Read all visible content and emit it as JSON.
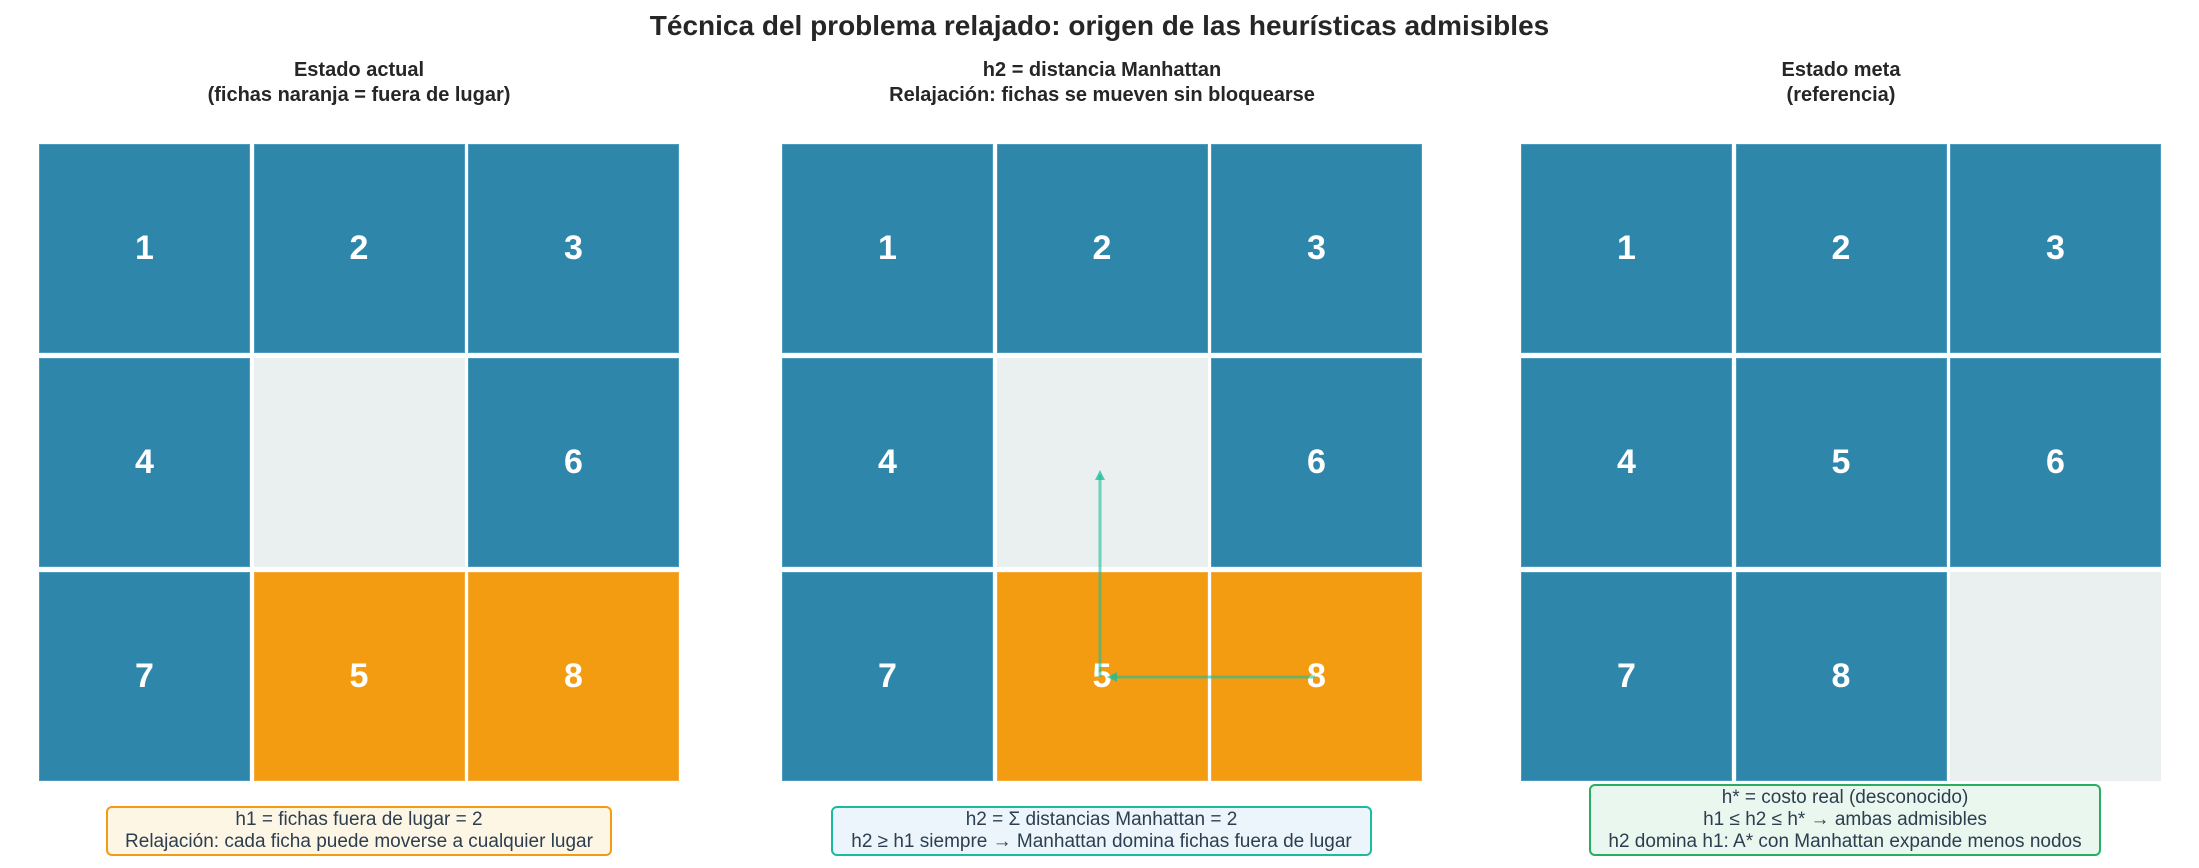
{
  "title": "Técnica del problema relajado: origen de las heurísticas admisibles",
  "colors": {
    "in_place": "#2e86ab",
    "out_of_place": "#f39c12",
    "blank": "#eaeff0",
    "arrow": "#1abc9c",
    "note_orange_border": "#f39c12",
    "note_teal_border": "#1abc9c",
    "note_green_border": "#27ae60"
  },
  "panels": [
    {
      "title_line1": "Estado actual",
      "title_line2": "(fichas naranja = fuera de lugar)",
      "tiles": [
        {
          "label": "1",
          "state": "ok"
        },
        {
          "label": "2",
          "state": "ok"
        },
        {
          "label": "3",
          "state": "ok"
        },
        {
          "label": "4",
          "state": "ok"
        },
        {
          "label": "",
          "state": "blank"
        },
        {
          "label": "6",
          "state": "ok"
        },
        {
          "label": "7",
          "state": "ok"
        },
        {
          "label": "5",
          "state": "bad"
        },
        {
          "label": "8",
          "state": "bad"
        }
      ],
      "note_lines": [
        "h1 = fichas fuera de lugar = 2",
        "Relajación: cada ficha puede moverse a cualquier lugar"
      ]
    },
    {
      "title_line1": "h2 = distancia Manhattan",
      "title_line2": "Relajación: fichas se mueven sin bloquearse",
      "tiles": [
        {
          "label": "1",
          "state": "ok"
        },
        {
          "label": "2",
          "state": "ok"
        },
        {
          "label": "3",
          "state": "ok"
        },
        {
          "label": "4",
          "state": "ok"
        },
        {
          "label": "",
          "state": "blank"
        },
        {
          "label": "6",
          "state": "ok"
        },
        {
          "label": "7",
          "state": "ok"
        },
        {
          "label": "5",
          "state": "bad"
        },
        {
          "label": "8",
          "state": "bad"
        }
      ],
      "arrows": [
        {
          "from": "tile 5 (row 3, col 2)",
          "to": "center cell (row 2, col 2)",
          "direction": "up"
        },
        {
          "from": "tile 8 (row 3, col 3)",
          "to": "row 3, col 2",
          "direction": "left"
        }
      ],
      "note_lines": [
        "h2 = Σ distancias Manhattan = 2",
        "h2 ≥ h1 siempre → Manhattan domina fichas fuera de lugar"
      ]
    },
    {
      "title_line1": "Estado meta",
      "title_line2": "(referencia)",
      "tiles": [
        {
          "label": "1",
          "state": "ok"
        },
        {
          "label": "2",
          "state": "ok"
        },
        {
          "label": "3",
          "state": "ok"
        },
        {
          "label": "4",
          "state": "ok"
        },
        {
          "label": "5",
          "state": "ok"
        },
        {
          "label": "6",
          "state": "ok"
        },
        {
          "label": "7",
          "state": "ok"
        },
        {
          "label": "8",
          "state": "ok"
        },
        {
          "label": "",
          "state": "blank"
        }
      ],
      "note_lines": [
        "h* = costo real (desconocido)",
        "h1 ≤ h2 ≤ h* → ambas admisibles",
        "h2 domina h1: A* con Manhattan expande menos nodos"
      ]
    }
  ]
}
